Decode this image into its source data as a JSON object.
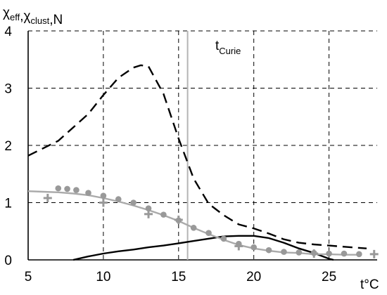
{
  "chart_data": {
    "type": "line",
    "ylabel_parts": [
      {
        "main": "χ",
        "sub": "eff"
      },
      {
        "main": ",χ",
        "sub": "clust"
      },
      {
        "main": ",N",
        "sub": ""
      }
    ],
    "xlabel": "t°C",
    "annotation": {
      "main": "t",
      "sub": "Curie"
    },
    "curie_x": 15.6,
    "xlim": [
      5,
      28.2
    ],
    "ylim": [
      0,
      4
    ],
    "xticks": [
      5,
      10,
      15,
      20,
      25
    ],
    "yticks": [
      0,
      1,
      2,
      3,
      4
    ],
    "grid": true,
    "series": [
      {
        "style": "dashed",
        "color": "#000000",
        "x": [
          5,
          7,
          9,
          10,
          11,
          12,
          12.5,
          13,
          14,
          15,
          16,
          17,
          18,
          19,
          20,
          21,
          22,
          23,
          24,
          25,
          26,
          27.5
        ],
        "y": [
          1.82,
          2.08,
          2.55,
          2.88,
          3.18,
          3.36,
          3.4,
          3.38,
          2.9,
          2.12,
          1.42,
          0.98,
          0.78,
          0.62,
          0.55,
          0.46,
          0.36,
          0.3,
          0.27,
          0.25,
          0.23,
          0.2
        ]
      },
      {
        "style": "solid",
        "color": "#000000",
        "x": [
          8,
          9,
          10,
          11,
          12,
          13,
          14,
          15,
          16,
          17,
          18,
          19,
          20,
          21,
          22,
          23,
          24,
          25,
          25.3
        ],
        "y": [
          0,
          0.06,
          0.11,
          0.15,
          0.18,
          0.22,
          0.25,
          0.29,
          0.33,
          0.37,
          0.41,
          0.42,
          0.42,
          0.38,
          0.3,
          0.2,
          0.12,
          0.02,
          0
        ]
      },
      {
        "style": "solid",
        "color": "#aaaaaa",
        "x": [
          5,
          6,
          7,
          8,
          9,
          10,
          11,
          12,
          13,
          14,
          15,
          16,
          17,
          18,
          19,
          20,
          21,
          22,
          23,
          24,
          25,
          26,
          27
        ],
        "y": [
          1.2,
          1.19,
          1.18,
          1.16,
          1.13,
          1.08,
          1.02,
          0.95,
          0.87,
          0.78,
          0.68,
          0.56,
          0.45,
          0.35,
          0.26,
          0.2,
          0.16,
          0.13,
          0.12,
          0.1,
          0.1,
          0.09,
          0.09
        ]
      },
      {
        "style": "circles",
        "color": "#999999",
        "x": [
          7,
          7.6,
          8.2,
          9,
          10,
          11,
          12,
          13,
          14,
          15,
          16,
          17,
          18,
          19,
          20,
          21,
          22,
          23,
          24,
          25,
          26,
          27
        ],
        "y": [
          1.25,
          1.24,
          1.22,
          1.17,
          1.12,
          1.06,
          1.0,
          0.9,
          0.79,
          0.69,
          0.56,
          0.47,
          0.37,
          0.28,
          0.22,
          0.17,
          0.14,
          0.13,
          0.12,
          0.11,
          0.11,
          0.1
        ]
      },
      {
        "style": "crosses",
        "color": "#999999",
        "x": [
          6.3,
          10,
          13,
          15,
          19,
          24,
          28
        ],
        "y": [
          1.08,
          1.0,
          0.8,
          0.7,
          0.24,
          0.11,
          0.1
        ]
      }
    ]
  }
}
